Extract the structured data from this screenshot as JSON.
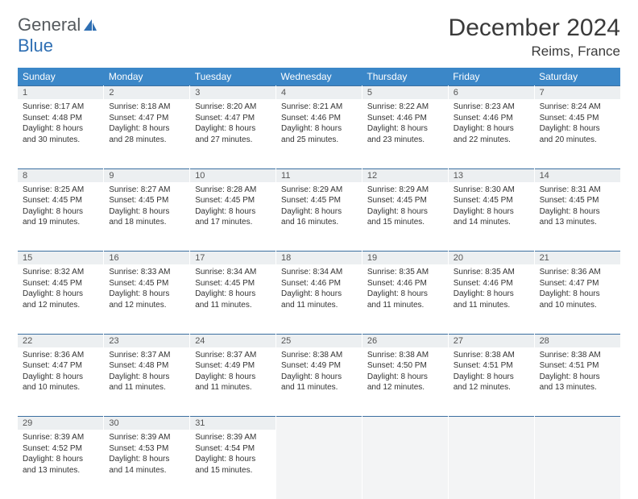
{
  "logo": {
    "text_general": "General",
    "text_blue": "Blue"
  },
  "title": "December 2024",
  "location": "Reims, France",
  "colors": {
    "header_bg": "#3b87c8",
    "header_text": "#ffffff",
    "daynum_bg": "#eceff1",
    "daynum_border_top": "#3b6fa0",
    "body_bg": "#ffffff",
    "text": "#333333",
    "logo_gray": "#555a5e",
    "logo_blue": "#2f6fb3"
  },
  "weekdays": [
    "Sunday",
    "Monday",
    "Tuesday",
    "Wednesday",
    "Thursday",
    "Friday",
    "Saturday"
  ],
  "weeks": [
    [
      {
        "n": "1",
        "sr": "8:17 AM",
        "ss": "4:48 PM",
        "dl": "8 hours and 30 minutes."
      },
      {
        "n": "2",
        "sr": "8:18 AM",
        "ss": "4:47 PM",
        "dl": "8 hours and 28 minutes."
      },
      {
        "n": "3",
        "sr": "8:20 AM",
        "ss": "4:47 PM",
        "dl": "8 hours and 27 minutes."
      },
      {
        "n": "4",
        "sr": "8:21 AM",
        "ss": "4:46 PM",
        "dl": "8 hours and 25 minutes."
      },
      {
        "n": "5",
        "sr": "8:22 AM",
        "ss": "4:46 PM",
        "dl": "8 hours and 23 minutes."
      },
      {
        "n": "6",
        "sr": "8:23 AM",
        "ss": "4:46 PM",
        "dl": "8 hours and 22 minutes."
      },
      {
        "n": "7",
        "sr": "8:24 AM",
        "ss": "4:45 PM",
        "dl": "8 hours and 20 minutes."
      }
    ],
    [
      {
        "n": "8",
        "sr": "8:25 AM",
        "ss": "4:45 PM",
        "dl": "8 hours and 19 minutes."
      },
      {
        "n": "9",
        "sr": "8:27 AM",
        "ss": "4:45 PM",
        "dl": "8 hours and 18 minutes."
      },
      {
        "n": "10",
        "sr": "8:28 AM",
        "ss": "4:45 PM",
        "dl": "8 hours and 17 minutes."
      },
      {
        "n": "11",
        "sr": "8:29 AM",
        "ss": "4:45 PM",
        "dl": "8 hours and 16 minutes."
      },
      {
        "n": "12",
        "sr": "8:29 AM",
        "ss": "4:45 PM",
        "dl": "8 hours and 15 minutes."
      },
      {
        "n": "13",
        "sr": "8:30 AM",
        "ss": "4:45 PM",
        "dl": "8 hours and 14 minutes."
      },
      {
        "n": "14",
        "sr": "8:31 AM",
        "ss": "4:45 PM",
        "dl": "8 hours and 13 minutes."
      }
    ],
    [
      {
        "n": "15",
        "sr": "8:32 AM",
        "ss": "4:45 PM",
        "dl": "8 hours and 12 minutes."
      },
      {
        "n": "16",
        "sr": "8:33 AM",
        "ss": "4:45 PM",
        "dl": "8 hours and 12 minutes."
      },
      {
        "n": "17",
        "sr": "8:34 AM",
        "ss": "4:45 PM",
        "dl": "8 hours and 11 minutes."
      },
      {
        "n": "18",
        "sr": "8:34 AM",
        "ss": "4:46 PM",
        "dl": "8 hours and 11 minutes."
      },
      {
        "n": "19",
        "sr": "8:35 AM",
        "ss": "4:46 PM",
        "dl": "8 hours and 11 minutes."
      },
      {
        "n": "20",
        "sr": "8:35 AM",
        "ss": "4:46 PM",
        "dl": "8 hours and 11 minutes."
      },
      {
        "n": "21",
        "sr": "8:36 AM",
        "ss": "4:47 PM",
        "dl": "8 hours and 10 minutes."
      }
    ],
    [
      {
        "n": "22",
        "sr": "8:36 AM",
        "ss": "4:47 PM",
        "dl": "8 hours and 10 minutes."
      },
      {
        "n": "23",
        "sr": "8:37 AM",
        "ss": "4:48 PM",
        "dl": "8 hours and 11 minutes."
      },
      {
        "n": "24",
        "sr": "8:37 AM",
        "ss": "4:49 PM",
        "dl": "8 hours and 11 minutes."
      },
      {
        "n": "25",
        "sr": "8:38 AM",
        "ss": "4:49 PM",
        "dl": "8 hours and 11 minutes."
      },
      {
        "n": "26",
        "sr": "8:38 AM",
        "ss": "4:50 PM",
        "dl": "8 hours and 12 minutes."
      },
      {
        "n": "27",
        "sr": "8:38 AM",
        "ss": "4:51 PM",
        "dl": "8 hours and 12 minutes."
      },
      {
        "n": "28",
        "sr": "8:38 AM",
        "ss": "4:51 PM",
        "dl": "8 hours and 13 minutes."
      }
    ],
    [
      {
        "n": "29",
        "sr": "8:39 AM",
        "ss": "4:52 PM",
        "dl": "8 hours and 13 minutes."
      },
      {
        "n": "30",
        "sr": "8:39 AM",
        "ss": "4:53 PM",
        "dl": "8 hours and 14 minutes."
      },
      {
        "n": "31",
        "sr": "8:39 AM",
        "ss": "4:54 PM",
        "dl": "8 hours and 15 minutes."
      },
      null,
      null,
      null,
      null
    ]
  ],
  "labels": {
    "sunrise": "Sunrise: ",
    "sunset": "Sunset: ",
    "daylight": "Daylight: "
  }
}
